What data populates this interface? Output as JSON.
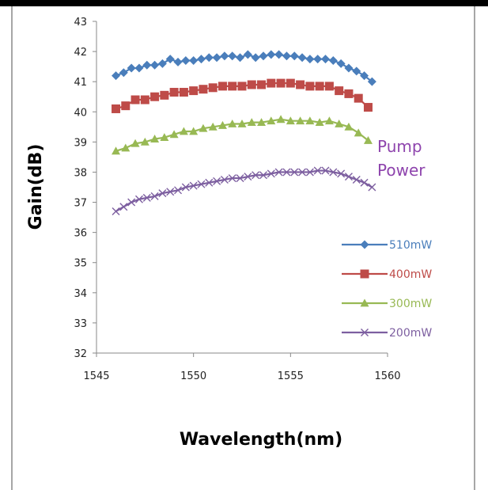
{
  "chart_data": {
    "type": "line",
    "xlabel": "Wavelength(nm)",
    "ylabel": "Gain(dB)",
    "xlim": [
      1545,
      1560
    ],
    "ylim": [
      32,
      43
    ],
    "xticks": [
      1545,
      1550,
      1555,
      1560
    ],
    "yticks": [
      32,
      33,
      34,
      35,
      36,
      37,
      38,
      39,
      40,
      41,
      42,
      43
    ],
    "grid": false,
    "legend_position": "right",
    "annotation": {
      "text_line1": "Pump",
      "text_line2": "Power",
      "color": "#8e44ad"
    },
    "series": [
      {
        "name": "510mW",
        "color": "#4a7ebb",
        "marker": "diamond",
        "x": [
          1546.0,
          1546.4,
          1546.8,
          1547.2,
          1547.6,
          1548.0,
          1548.4,
          1548.8,
          1549.2,
          1549.6,
          1550.0,
          1550.4,
          1550.8,
          1551.2,
          1551.6,
          1552.0,
          1552.4,
          1552.8,
          1553.2,
          1553.6,
          1554.0,
          1554.4,
          1554.8,
          1555.2,
          1555.6,
          1556.0,
          1556.4,
          1556.8,
          1557.2,
          1557.6,
          1558.0,
          1558.4,
          1558.8,
          1559.2
        ],
        "values": [
          41.2,
          41.3,
          41.45,
          41.45,
          41.55,
          41.55,
          41.6,
          41.75,
          41.65,
          41.7,
          41.7,
          41.75,
          41.8,
          41.8,
          41.85,
          41.85,
          41.8,
          41.9,
          41.8,
          41.85,
          41.9,
          41.9,
          41.85,
          41.85,
          41.8,
          41.75,
          41.75,
          41.75,
          41.7,
          41.6,
          41.45,
          41.35,
          41.2,
          41.0
        ]
      },
      {
        "name": "400mW",
        "color": "#be4b48",
        "marker": "square",
        "x": [
          1546.0,
          1546.5,
          1547.0,
          1547.5,
          1548.0,
          1548.5,
          1549.0,
          1549.5,
          1550.0,
          1550.5,
          1551.0,
          1551.5,
          1552.0,
          1552.5,
          1553.0,
          1553.5,
          1554.0,
          1554.5,
          1555.0,
          1555.5,
          1556.0,
          1556.5,
          1557.0,
          1557.5,
          1558.0,
          1558.5,
          1559.0
        ],
        "values": [
          40.1,
          40.2,
          40.4,
          40.4,
          40.5,
          40.55,
          40.65,
          40.65,
          40.7,
          40.75,
          40.8,
          40.85,
          40.85,
          40.85,
          40.9,
          40.9,
          40.95,
          40.95,
          40.95,
          40.9,
          40.85,
          40.85,
          40.85,
          40.7,
          40.6,
          40.45,
          40.15
        ]
      },
      {
        "name": "300mW",
        "color": "#98b954",
        "marker": "triangle",
        "x": [
          1546.0,
          1546.5,
          1547.0,
          1547.5,
          1548.0,
          1548.5,
          1549.0,
          1549.5,
          1550.0,
          1550.5,
          1551.0,
          1551.5,
          1552.0,
          1552.5,
          1553.0,
          1553.5,
          1554.0,
          1554.5,
          1555.0,
          1555.5,
          1556.0,
          1556.5,
          1557.0,
          1557.5,
          1558.0,
          1558.5,
          1559.0
        ],
        "values": [
          38.7,
          38.8,
          38.95,
          39.0,
          39.1,
          39.15,
          39.25,
          39.35,
          39.35,
          39.45,
          39.5,
          39.55,
          39.6,
          39.6,
          39.65,
          39.65,
          39.7,
          39.75,
          39.7,
          39.7,
          39.7,
          39.65,
          39.7,
          39.6,
          39.5,
          39.3,
          39.05
        ]
      },
      {
        "name": "200mW",
        "color": "#7d5fa0",
        "marker": "x",
        "x": [
          1546.0,
          1546.4,
          1546.8,
          1547.2,
          1547.6,
          1548.0,
          1548.4,
          1548.8,
          1549.2,
          1549.6,
          1550.0,
          1550.4,
          1550.8,
          1551.2,
          1551.6,
          1552.0,
          1552.4,
          1552.8,
          1553.2,
          1553.6,
          1554.0,
          1554.4,
          1554.8,
          1555.2,
          1555.6,
          1556.0,
          1556.4,
          1556.8,
          1557.2,
          1557.6,
          1558.0,
          1558.4,
          1558.8,
          1559.2
        ],
        "values": [
          36.7,
          36.85,
          37.0,
          37.1,
          37.15,
          37.2,
          37.3,
          37.35,
          37.4,
          37.5,
          37.55,
          37.6,
          37.65,
          37.7,
          37.75,
          37.8,
          37.8,
          37.85,
          37.9,
          37.9,
          37.95,
          38.0,
          38.0,
          38.0,
          38.0,
          38.0,
          38.05,
          38.05,
          38.0,
          37.95,
          37.85,
          37.75,
          37.65,
          37.5
        ]
      }
    ]
  }
}
